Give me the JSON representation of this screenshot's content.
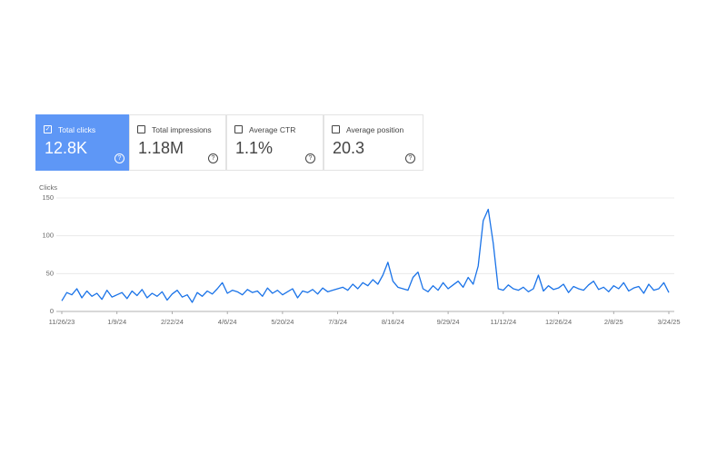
{
  "metrics": [
    {
      "label": "Total clicks",
      "value": "12.8K"
    },
    {
      "label": "Total impressions",
      "value": "1.18M"
    },
    {
      "label": "Average CTR",
      "value": "1.1%"
    },
    {
      "label": "Average position",
      "value": "20.3"
    }
  ],
  "chart_data": {
    "type": "line",
    "y_label": "Clicks",
    "color": "#1a73e8",
    "grid": true,
    "ylim": [
      0,
      150
    ],
    "yticks": [
      0,
      50,
      100,
      150
    ],
    "xlim": [
      "11/26/23",
      "3/24/25"
    ],
    "xticks": [
      "11/26/23",
      "1/9/24",
      "2/22/24",
      "4/6/24",
      "5/20/24",
      "7/3/24",
      "8/16/24",
      "9/29/24",
      "11/12/24",
      "12/26/24",
      "2/8/25",
      "3/24/25"
    ],
    "x": [
      "11/26/23",
      "11/30/23",
      "12/4/23",
      "12/8/23",
      "12/12/23",
      "12/16/23",
      "12/20/23",
      "12/24/23",
      "12/28/23",
      "1/1/24",
      "1/5/24",
      "1/9/24",
      "1/13/24",
      "1/17/24",
      "1/21/24",
      "1/25/24",
      "1/29/24",
      "2/2/24",
      "2/6/24",
      "2/10/24",
      "2/14/24",
      "2/18/24",
      "2/22/24",
      "2/26/24",
      "3/1/24",
      "3/5/24",
      "3/9/24",
      "3/13/24",
      "3/17/24",
      "3/21/24",
      "3/25/24",
      "3/29/24",
      "4/2/24",
      "4/6/24",
      "4/10/24",
      "4/14/24",
      "4/18/24",
      "4/22/24",
      "4/26/24",
      "4/30/24",
      "5/4/24",
      "5/8/24",
      "5/12/24",
      "5/16/24",
      "5/20/24",
      "5/24/24",
      "5/28/24",
      "6/1/24",
      "6/5/24",
      "6/9/24",
      "6/13/24",
      "6/17/24",
      "6/21/24",
      "6/25/24",
      "6/29/24",
      "7/3/24",
      "7/7/24",
      "7/11/24",
      "7/15/24",
      "7/19/24",
      "7/23/24",
      "7/27/24",
      "7/31/24",
      "8/4/24",
      "8/8/24",
      "8/12/24",
      "8/16/24",
      "8/20/24",
      "8/24/24",
      "8/28/24",
      "9/1/24",
      "9/5/24",
      "9/9/24",
      "9/13/24",
      "9/17/24",
      "9/21/24",
      "9/25/24",
      "9/29/24",
      "10/3/24",
      "10/7/24",
      "10/11/24",
      "10/15/24",
      "10/19/24",
      "10/23/24",
      "10/27/24",
      "10/31/24",
      "11/4/24",
      "11/8/24",
      "11/12/24",
      "11/16/24",
      "11/20/24",
      "11/24/24",
      "11/28/24",
      "12/2/24",
      "12/6/24",
      "12/10/24",
      "12/14/24",
      "12/18/24",
      "12/22/24",
      "12/26/24",
      "12/30/24",
      "1/3/25",
      "1/7/25",
      "1/11/25",
      "1/15/25",
      "1/19/25",
      "1/23/25",
      "1/27/25",
      "1/31/25",
      "2/4/25",
      "2/8/25",
      "2/12/25",
      "2/16/25",
      "2/20/25",
      "2/24/25",
      "2/28/25",
      "3/4/25",
      "3/8/25",
      "3/12/25",
      "3/16/25",
      "3/20/25",
      "3/24/25"
    ],
    "values": [
      14,
      25,
      22,
      30,
      18,
      27,
      20,
      24,
      16,
      28,
      19,
      22,
      25,
      17,
      27,
      21,
      29,
      18,
      24,
      20,
      26,
      15,
      23,
      28,
      19,
      22,
      12,
      25,
      20,
      27,
      23,
      30,
      38,
      24,
      28,
      26,
      22,
      29,
      25,
      27,
      20,
      31,
      24,
      28,
      22,
      26,
      30,
      18,
      27,
      25,
      29,
      23,
      31,
      26,
      28,
      30,
      32,
      28,
      36,
      30,
      38,
      34,
      42,
      36,
      48,
      65,
      40,
      32,
      30,
      28,
      45,
      52,
      30,
      26,
      34,
      28,
      38,
      30,
      35,
      40,
      32,
      45,
      36,
      60,
      120,
      135,
      90,
      30,
      28,
      35,
      30,
      28,
      32,
      26,
      30,
      48,
      27,
      34,
      29,
      31,
      36,
      25,
      33,
      30,
      28,
      35,
      40,
      29,
      32,
      26,
      34,
      30,
      38,
      27,
      31,
      33,
      24,
      36,
      28,
      30,
      38,
      25
    ]
  }
}
